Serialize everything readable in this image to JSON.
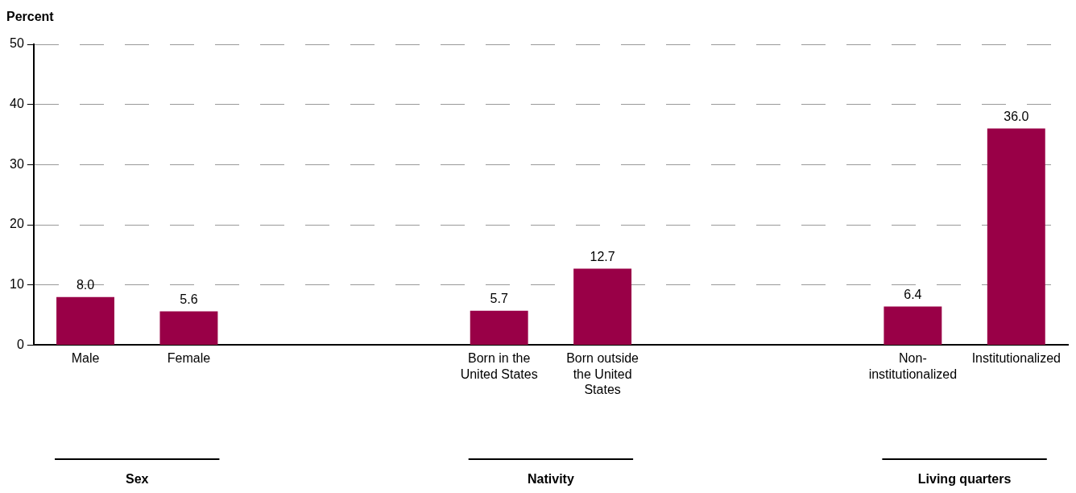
{
  "chart_data": {
    "type": "bar",
    "ylabel": "Percent",
    "categories": [
      "Male",
      "Female",
      null,
      null,
      "Born in the United States",
      "Born outside the United States",
      null,
      null,
      "Non-institutionalized",
      "Institutionalized"
    ],
    "values": [
      8.0,
      5.6,
      null,
      null,
      5.7,
      12.7,
      null,
      null,
      6.4,
      36.0
    ],
    "color": "#990047",
    "ylim": [
      0,
      50
    ],
    "yticks": [
      0,
      10,
      20,
      30,
      40,
      50
    ],
    "value_labels": [
      "8.0",
      "5.6",
      null,
      null,
      "5.7",
      "12.7",
      null,
      null,
      "6.4",
      "36.0"
    ],
    "grid": "y",
    "legend": false,
    "annotations": [
      "Sex",
      "Nativity",
      "Living quarters"
    ]
  }
}
